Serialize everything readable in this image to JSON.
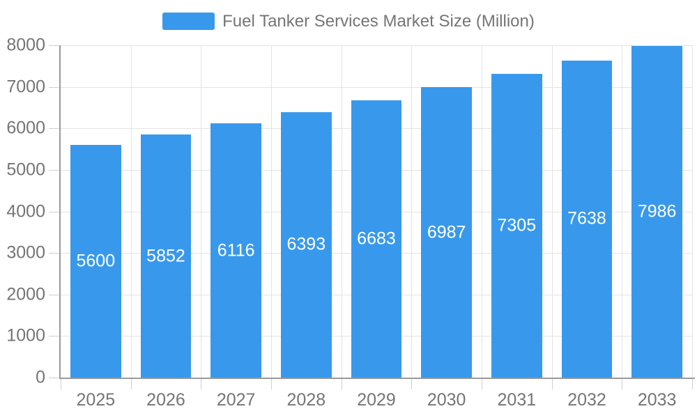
{
  "legend": {
    "label": "Fuel Tanker Services Market Size (Million)"
  },
  "chart_data": {
    "type": "bar",
    "title": "Fuel Tanker Services Market Size (Million)",
    "categories": [
      "2025",
      "2026",
      "2027",
      "2028",
      "2029",
      "2030",
      "2031",
      "2032",
      "2033"
    ],
    "values": [
      5600,
      5852,
      6116,
      6393,
      6683,
      6987,
      7305,
      7638,
      7986
    ],
    "series": [
      {
        "name": "Fuel Tanker Services Market Size (Million)",
        "values": [
          5600,
          5852,
          6116,
          6393,
          6683,
          6987,
          7305,
          7638,
          7986
        ]
      }
    ],
    "xlabel": "",
    "ylabel": "",
    "ylim": [
      0,
      8000
    ],
    "yticks": [
      0,
      1000,
      2000,
      3000,
      4000,
      5000,
      6000,
      7000,
      8000
    ],
    "grid": true,
    "legend_position": "top-center",
    "colors": {
      "bar": "#3899EC",
      "value_label": "#FFFFFF",
      "axis_label": "#757575",
      "axis_line": "#999999",
      "gridline": "#E3E3E3",
      "tick": "#CFCFCF",
      "background": "#FFFFFF"
    }
  }
}
